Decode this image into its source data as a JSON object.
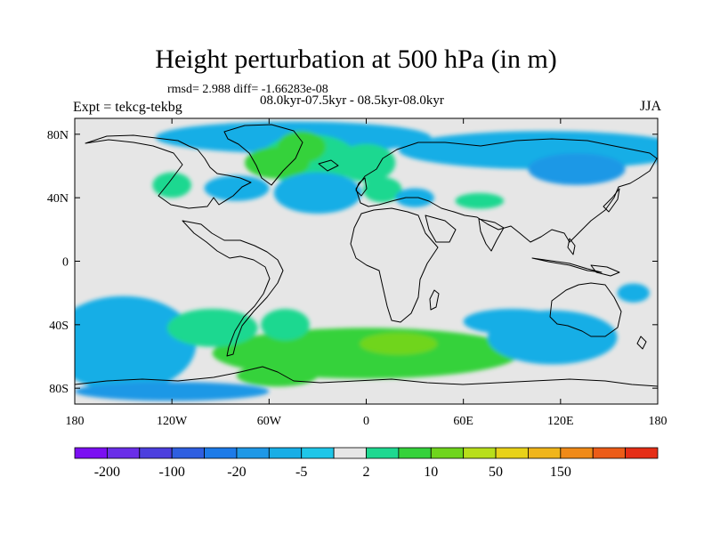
{
  "header": {
    "title": "Height perturbation at 500 hPa (in m)",
    "stats": "rmsd= 2.988 diff= -1.66283e-08",
    "periods": "08.0kyr-07.5kyr - 08.5kyr-08.0kyr",
    "expt": "Expt = tekcg-tekbg",
    "season": "JJA"
  },
  "axes": {
    "lat_ticks": [
      {
        "lat": 80,
        "label": "80N"
      },
      {
        "lat": 40,
        "label": "40N"
      },
      {
        "lat": 0,
        "label": "0"
      },
      {
        "lat": -40,
        "label": "40S"
      },
      {
        "lat": -80,
        "label": "80S"
      }
    ],
    "lon_ticks": [
      {
        "lon": -180,
        "label": "180"
      },
      {
        "lon": -120,
        "label": "120W"
      },
      {
        "lon": -60,
        "label": "60W"
      },
      {
        "lon": 0,
        "label": "0"
      },
      {
        "lon": 60,
        "label": "60E"
      },
      {
        "lon": 120,
        "label": "120E"
      },
      {
        "lon": 180,
        "label": "180"
      }
    ],
    "lat_range": [
      -90,
      90
    ],
    "lon_range": [
      -180,
      180
    ]
  },
  "colorbar": {
    "colors": [
      "#7b0ff2",
      "#6a2ee8",
      "#4c3fde",
      "#2f5fe0",
      "#1d7be8",
      "#1f98e6",
      "#18aee6",
      "#1fc6e8",
      "#e6e6e6",
      "#1ed890",
      "#35d23b",
      "#6fd51d",
      "#b8de1b",
      "#e8d218",
      "#f0b51a",
      "#f08a18",
      "#ec5c18",
      "#e52e16"
    ],
    "labels": [
      {
        "boundary": 1,
        "text": "-200"
      },
      {
        "boundary": 3,
        "text": "-100"
      },
      {
        "boundary": 5,
        "text": "-20"
      },
      {
        "boundary": 7,
        "text": "-5"
      },
      {
        "boundary": 9,
        "text": "2"
      },
      {
        "boundary": 11,
        "text": "10"
      },
      {
        "boundary": 13,
        "text": "50"
      },
      {
        "boundary": 15,
        "text": "150"
      }
    ]
  },
  "field": {
    "background_color": "#e6e6e6",
    "blobs": [
      {
        "lon": 0,
        "lat": -58,
        "rx": 95,
        "ry": 16,
        "color": "#35d23b"
      },
      {
        "lon": 20,
        "lat": -52,
        "rx": 24,
        "ry": 7,
        "color": "#6fd51d"
      },
      {
        "lon": -55,
        "lat": -72,
        "rx": 25,
        "ry": 7,
        "color": "#35d23b"
      },
      {
        "lon": -155,
        "lat": -62,
        "rx": 22,
        "ry": 22,
        "color": "#1d7be8"
      },
      {
        "lon": -150,
        "lat": -55,
        "rx": 30,
        "ry": 30,
        "color": "#1f98e6"
      },
      {
        "lon": -150,
        "lat": -52,
        "rx": 45,
        "ry": 30,
        "color": "#18aee6"
      },
      {
        "lon": -120,
        "lat": -82,
        "rx": 60,
        "ry": 6,
        "color": "#1f98e6"
      },
      {
        "lon": -95,
        "lat": -42,
        "rx": 28,
        "ry": 12,
        "color": "#1ed890"
      },
      {
        "lon": -50,
        "lat": -40,
        "rx": 15,
        "ry": 10,
        "color": "#1ed890"
      },
      {
        "lon": 118,
        "lat": -52,
        "rx": 10,
        "ry": 5,
        "color": "#1d7be8"
      },
      {
        "lon": 118,
        "lat": -50,
        "rx": 20,
        "ry": 9,
        "color": "#1f98e6"
      },
      {
        "lon": 115,
        "lat": -48,
        "rx": 40,
        "ry": 17,
        "color": "#18aee6"
      },
      {
        "lon": 90,
        "lat": -38,
        "rx": 30,
        "ry": 8,
        "color": "#18aee6"
      },
      {
        "lon": 165,
        "lat": -20,
        "rx": 10,
        "ry": 6,
        "color": "#18aee6"
      },
      {
        "lon": -45,
        "lat": 78,
        "rx": 85,
        "ry": 10,
        "color": "#18aee6"
      },
      {
        "lon": -35,
        "lat": 64,
        "rx": 30,
        "ry": 16,
        "color": "#1ed890"
      },
      {
        "lon": -40,
        "lat": 72,
        "rx": 15,
        "ry": 10,
        "color": "#35d23b"
      },
      {
        "lon": -55,
        "lat": 62,
        "rx": 20,
        "ry": 10,
        "color": "#35d23b"
      },
      {
        "lon": -120,
        "lat": 48,
        "rx": 12,
        "ry": 8,
        "color": "#1ed890"
      },
      {
        "lon": -80,
        "lat": 46,
        "rx": 20,
        "ry": 8,
        "color": "#18aee6"
      },
      {
        "lon": -30,
        "lat": 43,
        "rx": 20,
        "ry": 10,
        "color": "#1f98e6"
      },
      {
        "lon": -30,
        "lat": 43,
        "rx": 27,
        "ry": 13,
        "color": "#18aee6"
      },
      {
        "lon": 0,
        "lat": 62,
        "rx": 18,
        "ry": 12,
        "color": "#1ed890"
      },
      {
        "lon": 10,
        "lat": 45,
        "rx": 12,
        "ry": 8,
        "color": "#1ed890"
      },
      {
        "lon": 30,
        "lat": 40,
        "rx": 12,
        "ry": 6,
        "color": "#18aee6"
      },
      {
        "lon": 110,
        "lat": 70,
        "rx": 90,
        "ry": 12,
        "color": "#18aee6"
      },
      {
        "lon": 130,
        "lat": 58,
        "rx": 30,
        "ry": 10,
        "color": "#1f98e6"
      },
      {
        "lon": 70,
        "lat": 38,
        "rx": 15,
        "ry": 5,
        "color": "#1ed890"
      }
    ]
  }
}
